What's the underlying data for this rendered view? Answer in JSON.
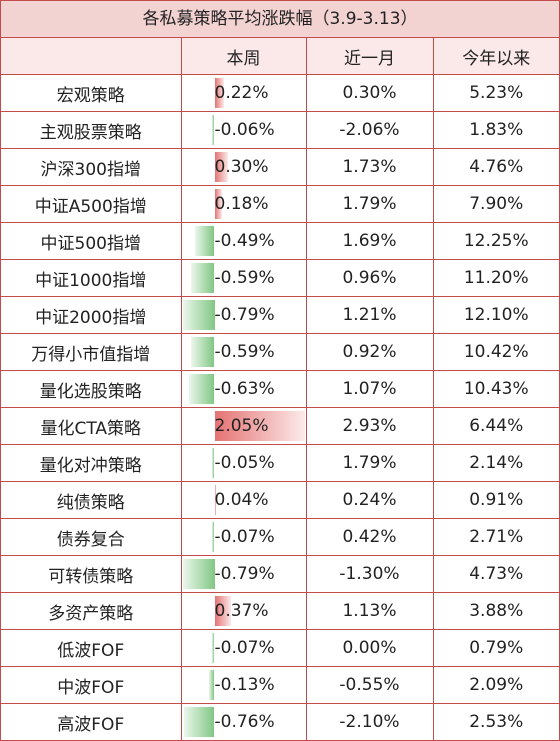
{
  "title": "各私募策略平均涨跌幅（3.9-3.13）",
  "headers": [
    "",
    "本周",
    "近一月",
    "今年以来"
  ],
  "rows": [
    {
      "name": "宏观策略",
      "week": "0.22%",
      "week_value": 0.22,
      "month": "0.30%",
      "ytd": "5.23%"
    },
    {
      "name": "主观股票策略",
      "week": "-0.06%",
      "week_value": -0.06,
      "month": "-2.06%",
      "ytd": "1.83%"
    },
    {
      "name": "沪深300指增",
      "week": "0.30%",
      "week_value": 0.3,
      "month": "1.73%",
      "ytd": "4.76%"
    },
    {
      "name": "中证A500指增",
      "week": "0.18%",
      "week_value": 0.18,
      "month": "1.79%",
      "ytd": "7.90%"
    },
    {
      "name": "中证500指增",
      "week": "-0.49%",
      "week_value": -0.49,
      "month": "1.69%",
      "ytd": "12.25%"
    },
    {
      "name": "中证1000指增",
      "week": "-0.59%",
      "week_value": -0.59,
      "month": "0.96%",
      "ytd": "11.20%"
    },
    {
      "name": "中证2000指增",
      "week": "-0.79%",
      "week_value": -0.79,
      "month": "1.21%",
      "ytd": "12.10%"
    },
    {
      "name": "万得小市值指增",
      "week": "-0.59%",
      "week_value": -0.59,
      "month": "0.92%",
      "ytd": "10.42%"
    },
    {
      "name": "量化选股策略",
      "week": "-0.63%",
      "week_value": -0.63,
      "month": "1.07%",
      "ytd": "10.43%"
    },
    {
      "name": "量化CTA策略",
      "week": "2.05%",
      "week_value": 2.05,
      "month": "2.93%",
      "ytd": "6.44%"
    },
    {
      "name": "量化对冲策略",
      "week": "-0.05%",
      "week_value": -0.05,
      "month": "1.79%",
      "ytd": "2.14%"
    },
    {
      "name": "纯债策略",
      "week": "0.04%",
      "week_value": 0.04,
      "month": "0.24%",
      "ytd": "0.91%"
    },
    {
      "name": "债券复合",
      "week": "-0.07%",
      "week_value": -0.07,
      "month": "0.42%",
      "ytd": "2.71%"
    },
    {
      "name": "可转债策略",
      "week": "-0.79%",
      "week_value": -0.79,
      "month": "-1.30%",
      "ytd": "4.73%"
    },
    {
      "name": "多资产策略",
      "week": "0.37%",
      "week_value": 0.37,
      "month": "1.13%",
      "ytd": "3.88%"
    },
    {
      "name": "低波FOF",
      "week": "-0.07%",
      "week_value": -0.07,
      "month": "0.00%",
      "ytd": "0.79%"
    },
    {
      "name": "中波FOF",
      "week": "-0.13%",
      "week_value": -0.13,
      "month": "-0.55%",
      "ytd": "2.09%"
    },
    {
      "name": "高波FOF",
      "week": "-0.76%",
      "week_value": -0.76,
      "month": "-2.10%",
      "ytd": "2.53%"
    }
  ],
  "colors": {
    "border": "#c44b4b",
    "header_bg": "#f3d2d2",
    "positive_bar": "#e57373",
    "negative_bar": "#81c784"
  }
}
